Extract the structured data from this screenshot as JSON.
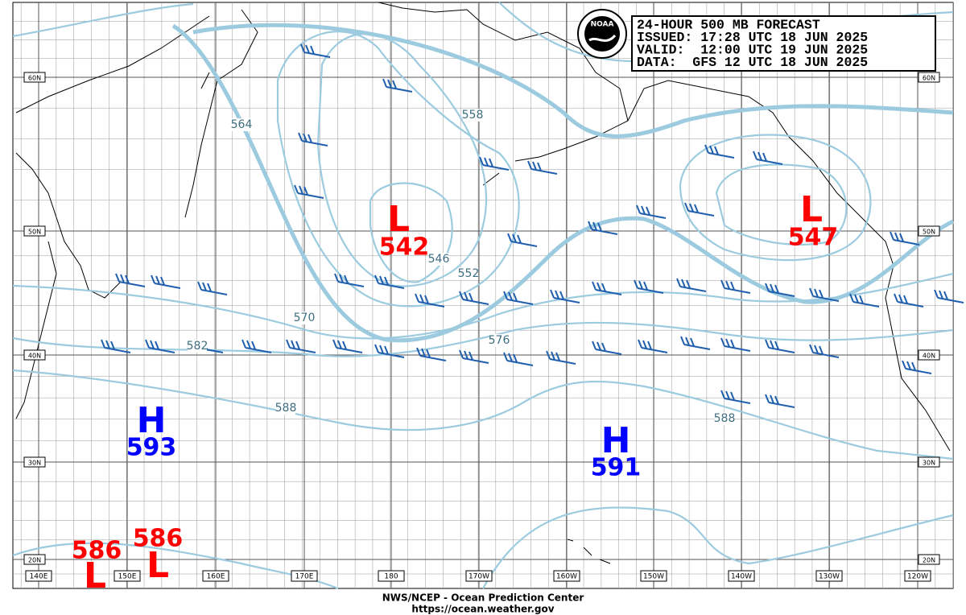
{
  "header": {
    "lines": [
      "24-HOUR 500 MB FORECAST",
      "ISSUED: 17:28 UTC 18 JUN 2025",
      "VALID:  12:00 UTC 19 JUN 2025",
      "DATA:  GFS 12 UTC 18 JUN 2025"
    ],
    "logo": "NOAA"
  },
  "centers": [
    {
      "letter": "L",
      "value": "542"
    },
    {
      "letter": "L",
      "value": "547"
    },
    {
      "letter": "H",
      "value": "593"
    },
    {
      "letter": "H",
      "value": "591"
    },
    {
      "letter": "L",
      "value": "586"
    },
    {
      "letter": "L",
      "value": "586"
    }
  ],
  "contour_labels": [
    "558",
    "552",
    "546",
    "564",
    "570",
    "582",
    "576",
    "588",
    "588"
  ],
  "lat_labels": [
    "60N",
    "50N",
    "40N",
    "30N",
    "20N"
  ],
  "lon_labels": [
    "140E",
    "150E",
    "160E",
    "170E",
    "180",
    "170W",
    "160W",
    "150W",
    "140W",
    "130W",
    "120W"
  ],
  "footer": [
    "NWS/NCEP - Ocean Prediction Center",
    "https://ocean.weather.gov"
  ]
}
